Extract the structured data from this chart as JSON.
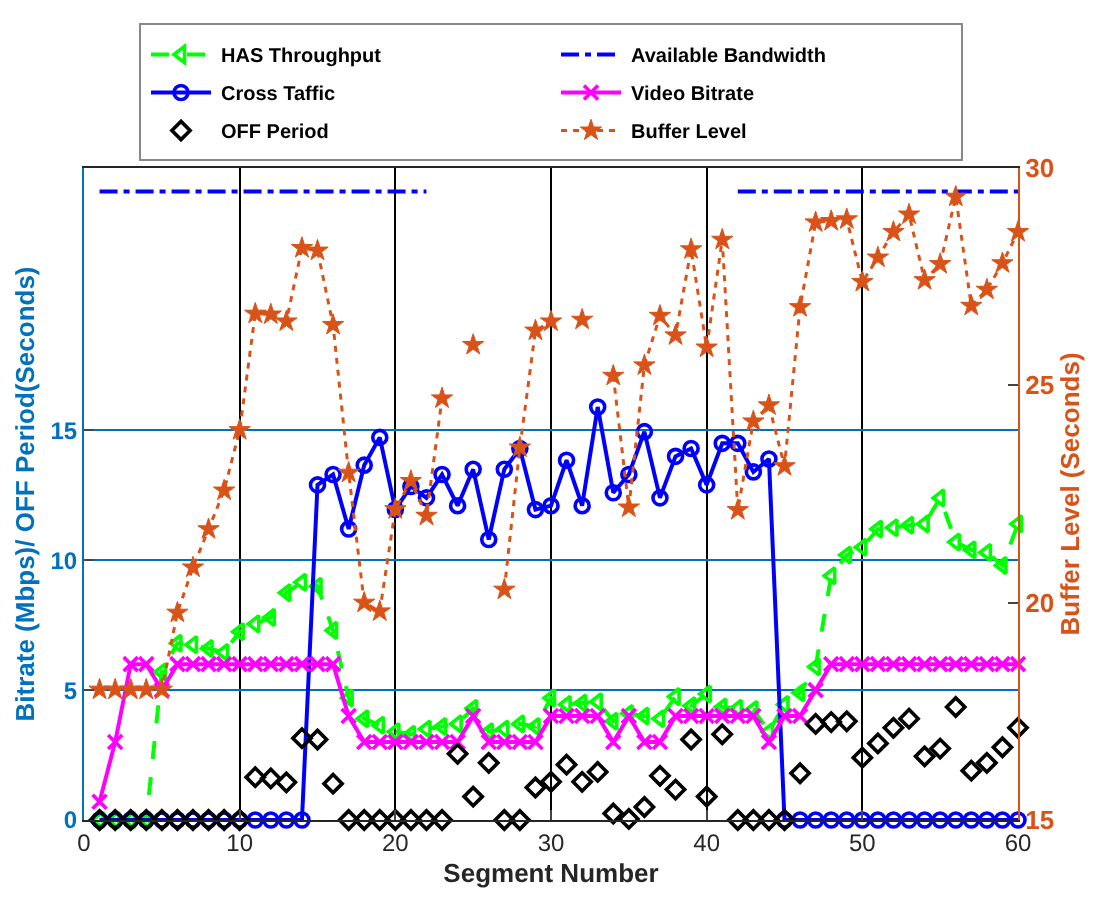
{
  "chart_data": {
    "type": "line",
    "xlabel": "Segment Number",
    "ylabel": "Bitrate (Mbps)/ OFF Period(Seconds)",
    "y2label": "Buffer Level (Seconds)",
    "x": [
      1,
      2,
      3,
      4,
      5,
      6,
      7,
      8,
      9,
      10,
      11,
      12,
      13,
      14,
      15,
      16,
      17,
      18,
      19,
      20,
      21,
      22,
      23,
      24,
      25,
      26,
      27,
      28,
      29,
      30,
      31,
      32,
      33,
      34,
      35,
      36,
      37,
      38,
      39,
      40,
      41,
      42,
      43,
      44,
      45,
      46,
      47,
      48,
      49,
      50,
      51,
      52,
      53,
      54,
      55,
      56,
      57,
      58,
      59,
      60
    ],
    "xlim": [
      0,
      60
    ],
    "xticks": [
      0,
      10,
      20,
      30,
      40,
      50,
      60
    ],
    "ylim": [
      0,
      25.1
    ],
    "yticks": [
      0,
      5,
      10,
      15
    ],
    "y2lim": [
      15,
      30
    ],
    "y2ticks": [
      15,
      20,
      25,
      30
    ],
    "grid": true,
    "legend": "top",
    "series": [
      {
        "name": "HAS Throughput",
        "color": "#00ff00",
        "marker": "triangle",
        "line_style": "dashed",
        "values": [
          0,
          0,
          0,
          0,
          5.7,
          6.8,
          6.75,
          6.6,
          6.45,
          7.25,
          7.55,
          7.8,
          8.75,
          9.15,
          9.0,
          7.3,
          4.7,
          3.9,
          3.65,
          3.4,
          3.3,
          3.5,
          3.6,
          3.7,
          4.3,
          3.4,
          3.5,
          3.7,
          3.6,
          4.7,
          4.45,
          4.5,
          4.55,
          3.8,
          4.1,
          4.0,
          3.9,
          4.75,
          4.4,
          4.85,
          4.35,
          4.3,
          4.25,
          3.4,
          4.45,
          4.9,
          5.9,
          9.4,
          10.2,
          10.5,
          11.2,
          11.25,
          11.35,
          11.4,
          12.4,
          10.7,
          10.4,
          10.3,
          9.8,
          11.4
        ]
      },
      {
        "name": "Available Bandwidth",
        "color": "#0000ff",
        "marker": "none",
        "line_style": "dashdot",
        "values": [
          24.2,
          24.2,
          24.2,
          24.2,
          24.2,
          24.2,
          24.2,
          24.2,
          24.2,
          24.2,
          24.2,
          24.2,
          24.2,
          24.2,
          24.2,
          24.2,
          24.2,
          24.2,
          24.2,
          24.2,
          24.2,
          24.2,
          null,
          null,
          null,
          null,
          null,
          null,
          null,
          null,
          null,
          null,
          null,
          null,
          null,
          null,
          null,
          null,
          null,
          null,
          null,
          24.2,
          24.2,
          24.2,
          24.2,
          24.2,
          24.2,
          24.2,
          24.2,
          24.2,
          24.2,
          24.2,
          24.2,
          24.2,
          24.2,
          24.2,
          24.2,
          24.2,
          24.2,
          24.2
        ]
      },
      {
        "name": "Cross Taffic",
        "color": "#0000ff",
        "marker": "circle",
        "line_style": "solid",
        "values": [
          0,
          0,
          0,
          0,
          0,
          0,
          0,
          0,
          0,
          0,
          0,
          0,
          0,
          0,
          12.9,
          13.3,
          11.2,
          13.66,
          14.73,
          11.95,
          12.84,
          12.4,
          13.3,
          12.1,
          13.5,
          10.8,
          13.5,
          14.3,
          11.95,
          12.1,
          13.85,
          12.1,
          15.9,
          12.6,
          13.3,
          14.95,
          12.4,
          14.0,
          14.3,
          12.9,
          14.5,
          14.5,
          13.4,
          13.9,
          0,
          0,
          0,
          0,
          0,
          0,
          0,
          0,
          0,
          0,
          0,
          0,
          0,
          0,
          0,
          0
        ]
      },
      {
        "name": "Video Bitrate",
        "color": "#ff00ff",
        "marker": "cross",
        "line_style": "solid",
        "values": [
          0.7,
          3,
          6,
          6,
          5,
          6,
          6,
          6,
          6,
          6,
          6,
          6,
          6,
          6,
          6,
          6,
          4,
          3,
          3,
          3,
          3,
          3,
          3,
          3,
          4,
          3,
          3,
          3,
          3,
          4,
          4,
          4,
          4,
          3,
          4,
          3,
          3,
          4,
          4,
          4,
          4,
          4,
          4,
          3,
          4,
          4,
          5,
          6,
          6,
          6,
          6,
          6,
          6,
          6,
          6,
          6,
          6,
          6,
          6,
          6
        ]
      },
      {
        "name": "OFF Period",
        "type": "scatter",
        "color": "#000000",
        "marker": "diamond",
        "values": [
          0,
          0,
          0,
          0,
          0,
          0,
          0,
          0,
          0,
          0,
          1.65,
          1.6,
          1.45,
          3.15,
          3.1,
          1.4,
          0,
          0,
          0,
          0,
          0,
          0,
          0,
          2.55,
          0.9,
          2.2,
          0,
          0,
          1.25,
          1.47,
          2.13,
          1.47,
          1.85,
          0.25,
          0.04,
          0.5,
          1.7,
          1.17,
          3.1,
          0.9,
          3.3,
          0,
          0,
          0,
          0,
          1.8,
          3.7,
          3.77,
          3.8,
          2.4,
          2.95,
          3.55,
          3.9,
          2.45,
          2.75,
          4.35,
          1.9,
          2.2,
          2.8,
          3.55
        ]
      },
      {
        "name": "Buffer Level",
        "axis": "y2",
        "color": "#d95319",
        "marker": "star",
        "line_style": "dotted",
        "values": [
          18,
          18,
          18,
          18,
          18,
          19.77,
          20.81,
          21.69,
          22.58,
          23.97,
          26.65,
          26.63,
          26.47,
          28.16,
          28.1,
          26.39,
          22.99,
          20.0,
          19.8,
          22.15,
          22.8,
          22.0,
          24.7,
          null,
          25.93,
          null,
          20.3,
          23.57,
          26.26,
          26.47,
          null,
          26.51,
          null,
          25.22,
          22.19,
          25.46,
          26.6,
          26.15,
          28.13,
          25.87,
          28.35,
          22.13,
          24.17,
          24.54,
          23.14,
          26.8,
          28.75,
          28.78,
          28.82,
          27.38,
          27.94,
          28.53,
          28.93,
          27.42,
          27.79,
          29.34,
          26.83,
          27.2,
          27.81,
          28.53
        ]
      }
    ]
  }
}
